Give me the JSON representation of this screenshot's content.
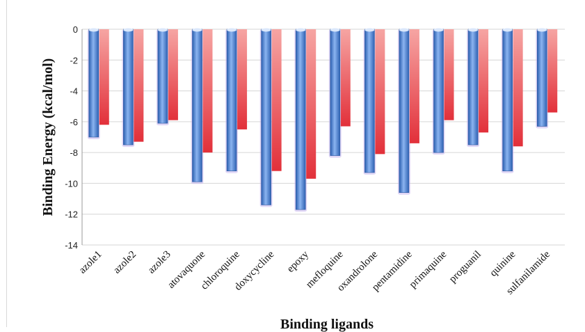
{
  "chart_data": {
    "type": "bar",
    "title": "",
    "xlabel": "Binding ligands",
    "ylabel": "Binding Energy (kcal/mol)",
    "ylim": [
      -14,
      0
    ],
    "y_ticks": [
      0,
      -2,
      -4,
      -6,
      -8,
      -10,
      -12,
      -14
    ],
    "grid": true,
    "legend": "none",
    "categories": [
      "azole1",
      "azole2",
      "azole3",
      "atovaquone",
      "chloroquine",
      "doxycycline",
      "epoxy",
      "mefloquine",
      "oxandrolone",
      "pentamidine",
      "primaquine",
      "proguanil",
      "quinine",
      "sulfanilamide"
    ],
    "series": [
      {
        "color": "#4a86d9",
        "values": [
          -7.0,
          -7.5,
          -6.1,
          -9.9,
          -9.2,
          -11.4,
          -11.7,
          -8.2,
          -9.3,
          -10.6,
          -8.0,
          -7.5,
          -9.2,
          -6.3
        ]
      },
      {
        "color": "#e8474b",
        "values": [
          -6.2,
          -7.3,
          -5.9,
          -8.0,
          -6.5,
          -9.2,
          -9.7,
          -6.3,
          -8.1,
          -7.4,
          -5.9,
          -6.7,
          -7.6,
          -5.4
        ]
      }
    ]
  }
}
